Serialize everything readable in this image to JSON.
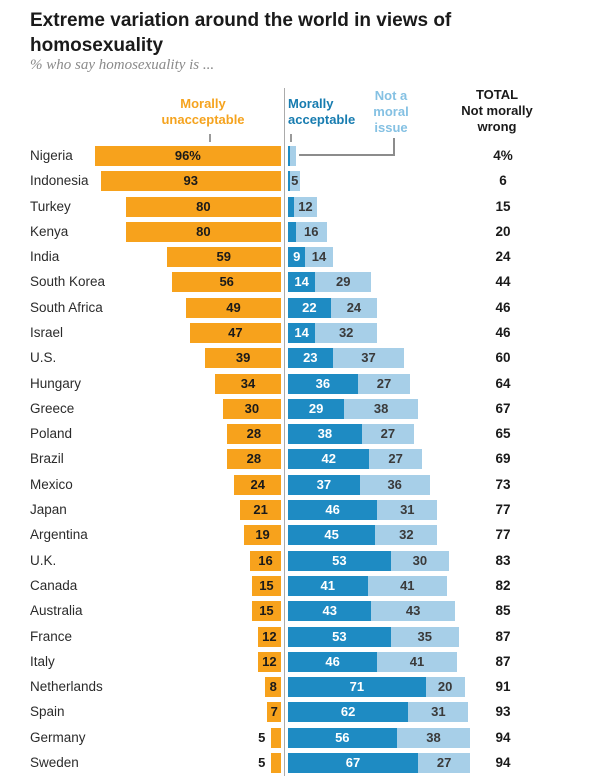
{
  "header": {
    "title": "Extreme variation around the world in views of homosexuality",
    "subtitle": "% who say homosexuality is ..."
  },
  "legend": {
    "unacceptable": {
      "line1": "Morally",
      "line2": "unacceptable"
    },
    "acceptable": {
      "line1": "Morally",
      "line2": "acceptable"
    },
    "not_moral": {
      "line1": "Not a",
      "line2": "moral",
      "line3": "issue"
    },
    "total": {
      "line1": "TOTAL",
      "line2": "Not morally",
      "line3": "wrong"
    }
  },
  "colors": {
    "orange": "#F7A21C",
    "dark_blue": "#1E8BC3",
    "light_blue": "#A7CFE8",
    "axis_gray": "#ABABAB",
    "leader_gray": "#8C8C8C",
    "title_text": "#1A1A1A",
    "subtitle_text": "#8A8A8A",
    "country_text": "#2B2B2B",
    "value_on_orange": "#1A1A1A",
    "value_on_dark_blue": "#FFFFFF",
    "value_on_light_blue": "#3A3A3A"
  },
  "chart_data": {
    "type": "bar",
    "subtype": "diverging-stacked-horizontal",
    "unit": "%",
    "title": "Extreme variation around the world in views of homosexuality",
    "subtitle": "% who say homosexuality is ...",
    "legend_position": "top",
    "grid": false,
    "first_row_value_suffix": "%",
    "categories": [
      "Nigeria",
      "Indonesia",
      "Turkey",
      "Kenya",
      "India",
      "South Korea",
      "South Africa",
      "Israel",
      "U.S.",
      "Hungary",
      "Greece",
      "Poland",
      "Brazil",
      "Mexico",
      "Japan",
      "Argentina",
      "U.K.",
      "Canada",
      "Australia",
      "France",
      "Italy",
      "Netherlands",
      "Spain",
      "Germany",
      "Sweden"
    ],
    "series": [
      {
        "name": "Morally unacceptable",
        "direction": "left",
        "color": "#F7A21C",
        "values": [
          96,
          93,
          80,
          80,
          59,
          56,
          49,
          47,
          39,
          34,
          30,
          28,
          28,
          24,
          21,
          19,
          16,
          15,
          15,
          12,
          12,
          8,
          7,
          5,
          5
        ]
      },
      {
        "name": "Morally acceptable",
        "direction": "right",
        "color": "#1E8BC3",
        "values": [
          1,
          1,
          3,
          4,
          9,
          14,
          22,
          14,
          23,
          36,
          29,
          38,
          42,
          37,
          46,
          45,
          53,
          41,
          43,
          53,
          46,
          71,
          62,
          56,
          67
        ]
      },
      {
        "name": "Not a moral issue",
        "direction": "right",
        "color": "#A7CFE8",
        "values": [
          3,
          5,
          12,
          16,
          14,
          29,
          24,
          32,
          37,
          27,
          38,
          27,
          27,
          36,
          31,
          32,
          30,
          41,
          43,
          35,
          41,
          20,
          31,
          38,
          27
        ]
      }
    ],
    "totals": {
      "name": "TOTAL Not morally wrong",
      "values": [
        4,
        6,
        15,
        20,
        24,
        44,
        46,
        46,
        60,
        64,
        67,
        65,
        69,
        73,
        77,
        77,
        83,
        82,
        85,
        87,
        87,
        91,
        93,
        94,
        94
      ]
    }
  }
}
